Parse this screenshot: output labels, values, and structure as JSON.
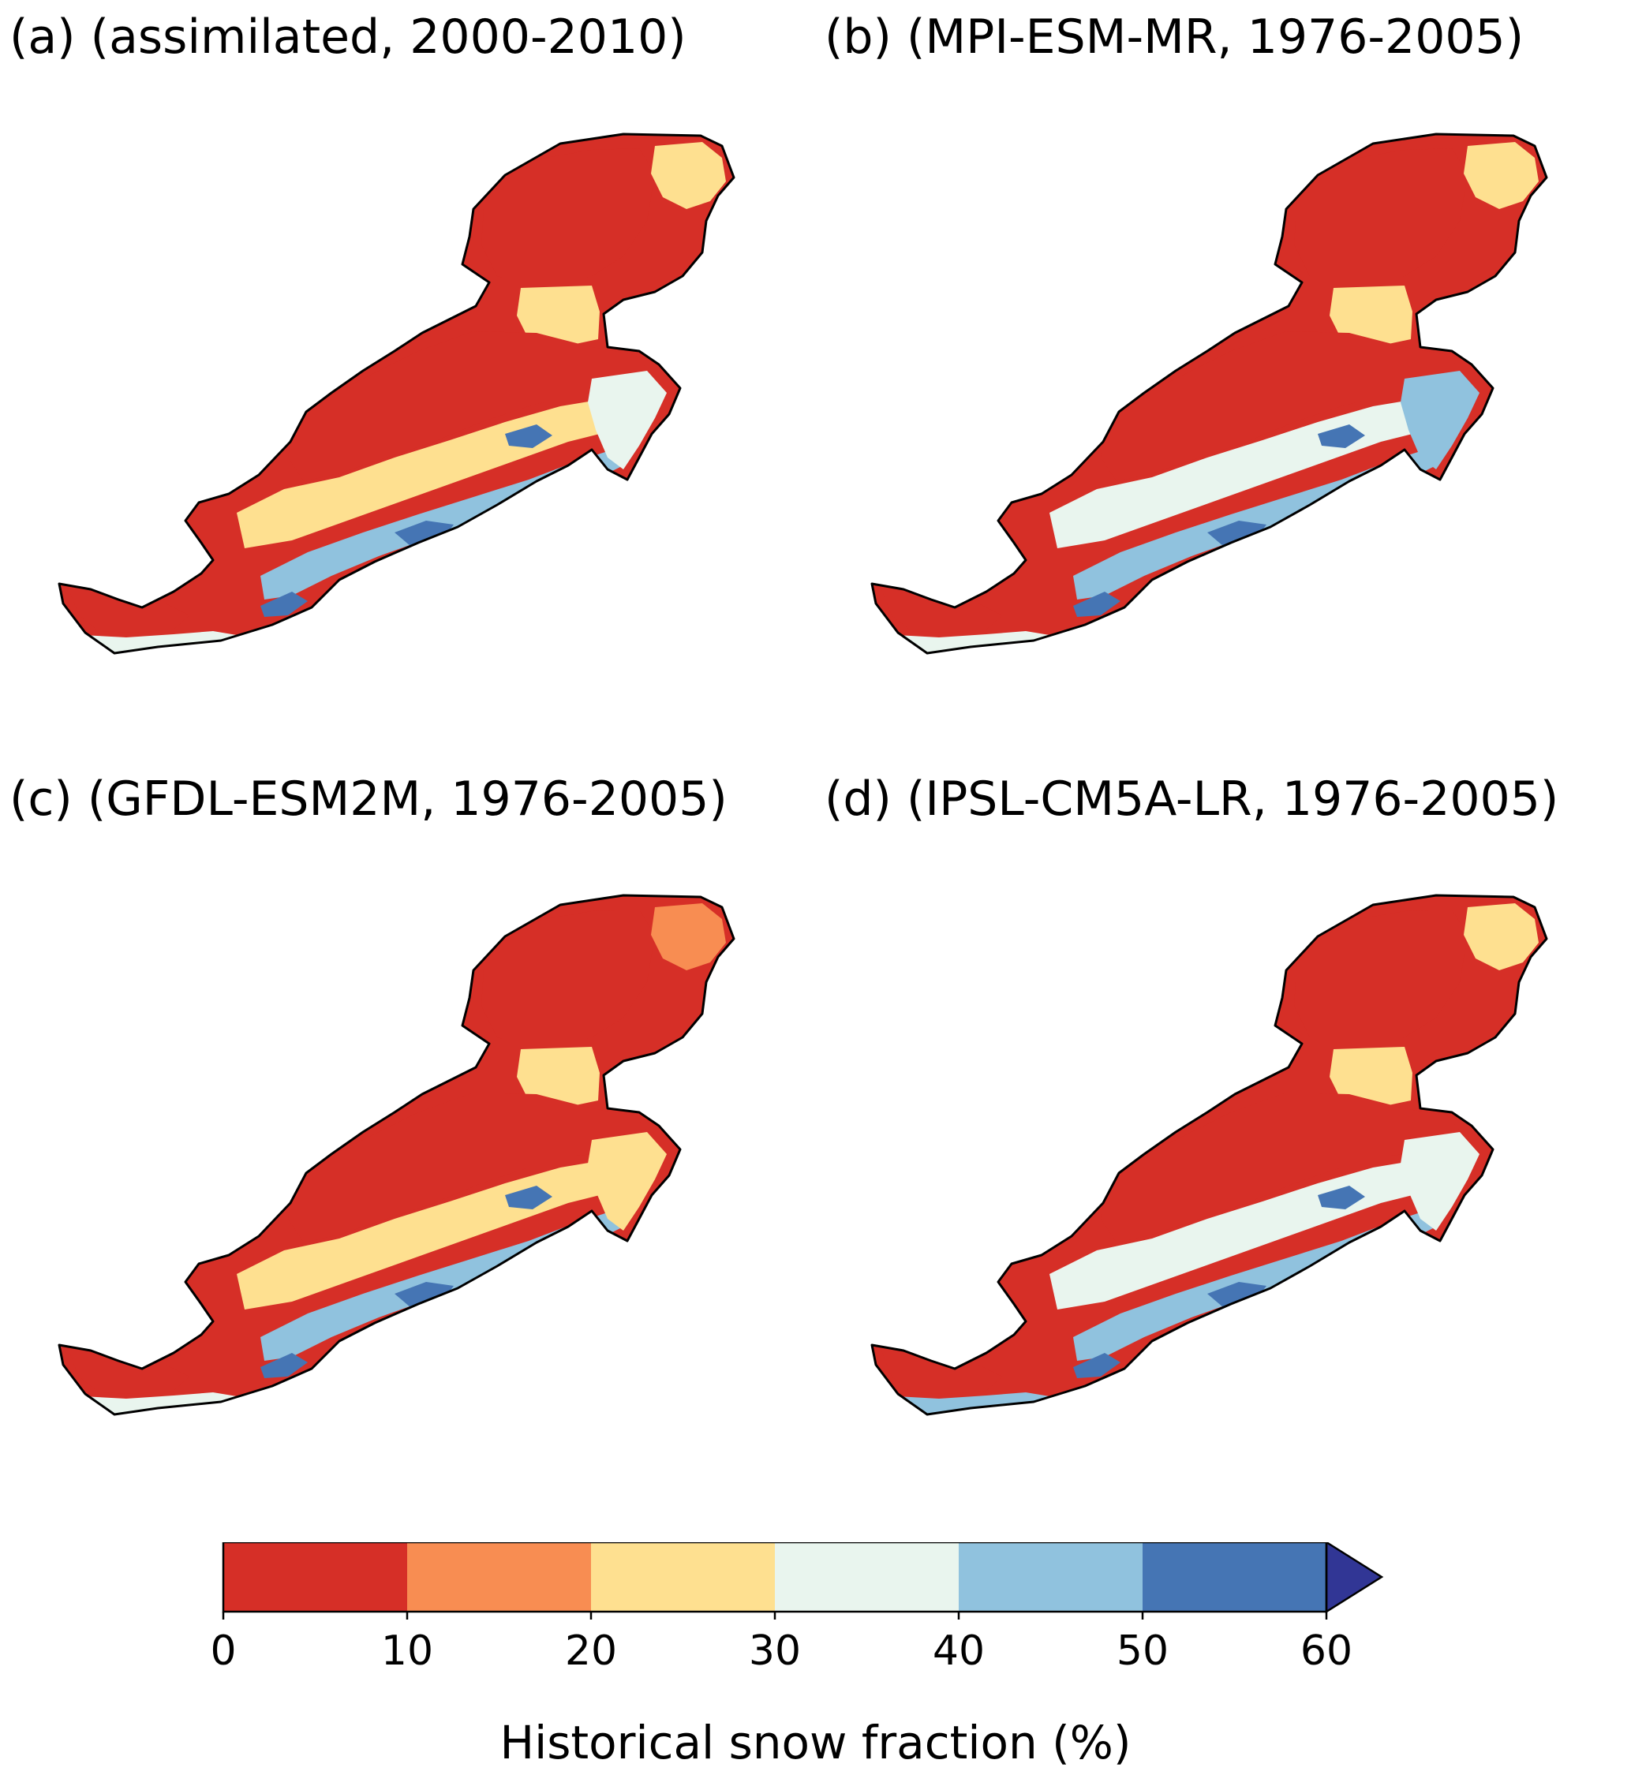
{
  "panels": [
    {
      "id": "a",
      "title": "(a) (assimilated, 2000-2010)",
      "levels": {
        "north_lobe": 0,
        "north_east_edge": 2,
        "neck": 2,
        "upper_central": 0,
        "mid_belt": 2,
        "south_belt": 4,
        "south_deep_spots": 5,
        "east_arm": 3,
        "southwest_lobe": 0,
        "southwest_edge": 3
      }
    },
    {
      "id": "b",
      "title": "(b) (MPI-ESM-MR, 1976-2005)",
      "levels": {
        "north_lobe": 0,
        "north_east_edge": 2,
        "neck": 2,
        "upper_central": 0,
        "mid_belt": 3,
        "south_belt": 4,
        "south_deep_spots": 5,
        "east_arm": 4,
        "southwest_lobe": 0,
        "southwest_edge": 3
      }
    },
    {
      "id": "c",
      "title": "(c) (GFDL-ESM2M, 1976-2005)",
      "levels": {
        "north_lobe": 0,
        "north_east_edge": 1,
        "neck": 2,
        "upper_central": 0,
        "mid_belt": 2,
        "south_belt": 4,
        "south_deep_spots": 5,
        "east_arm": 2,
        "southwest_lobe": 0,
        "southwest_edge": 3
      }
    },
    {
      "id": "d",
      "title": "(d) (IPSL-CM5A-LR, 1976-2005)",
      "levels": {
        "north_lobe": 0,
        "north_east_edge": 2,
        "neck": 2,
        "upper_central": 0,
        "mid_belt": 3,
        "south_belt": 4,
        "south_deep_spots": 5,
        "east_arm": 3,
        "southwest_lobe": 0,
        "southwest_edge": 4
      }
    }
  ],
  "colorbar": {
    "label": "Historical snow fraction (%)",
    "ticks": [
      "0",
      "10",
      "20",
      "30",
      "40",
      "50",
      "60"
    ],
    "bins": [
      0,
      10,
      20,
      30,
      40,
      50,
      60
    ],
    "colors": [
      "#d62f27",
      "#f88d52",
      "#fee090",
      "#e9f5ee",
      "#90c2de",
      "#4575b4"
    ],
    "extend_color": "#313695",
    "extend": "max"
  }
}
